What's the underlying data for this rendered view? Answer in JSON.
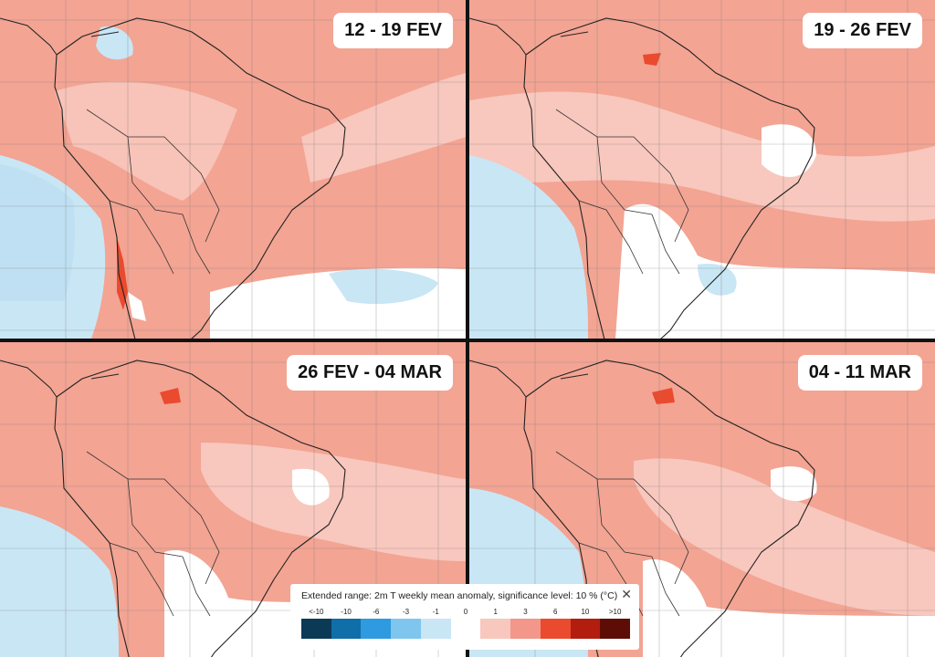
{
  "panels": [
    {
      "label": "12 - 19 FEV"
    },
    {
      "label": "19 - 26 FEV"
    },
    {
      "label": "26 FEV - 04 MAR"
    },
    {
      "label": "04 - 11 MAR"
    }
  ],
  "legend": {
    "title": "Extended range: 2m T weekly mean anomaly, significance level: 10 % (°C)",
    "close_symbol": "✕",
    "ticks": [
      "<-10",
      "-10",
      "-6",
      "-3",
      "-1",
      "0",
      "1",
      "3",
      "6",
      "10",
      ">10"
    ],
    "colors": [
      "#0b3a57",
      "#106ea8",
      "#2e9be0",
      "#7fc6ef",
      "#c9e6f5",
      "#ffffff",
      "#f8c7bd",
      "#f2978a",
      "#ea4a2e",
      "#b31d0e",
      "#5e0c06"
    ]
  },
  "palette": {
    "warm_light": "#f8c7bd",
    "warm": "#f2978a",
    "warm_strong": "#ea4a2e",
    "cold": "#c9e6f5",
    "neutral": "#ffffff"
  }
}
